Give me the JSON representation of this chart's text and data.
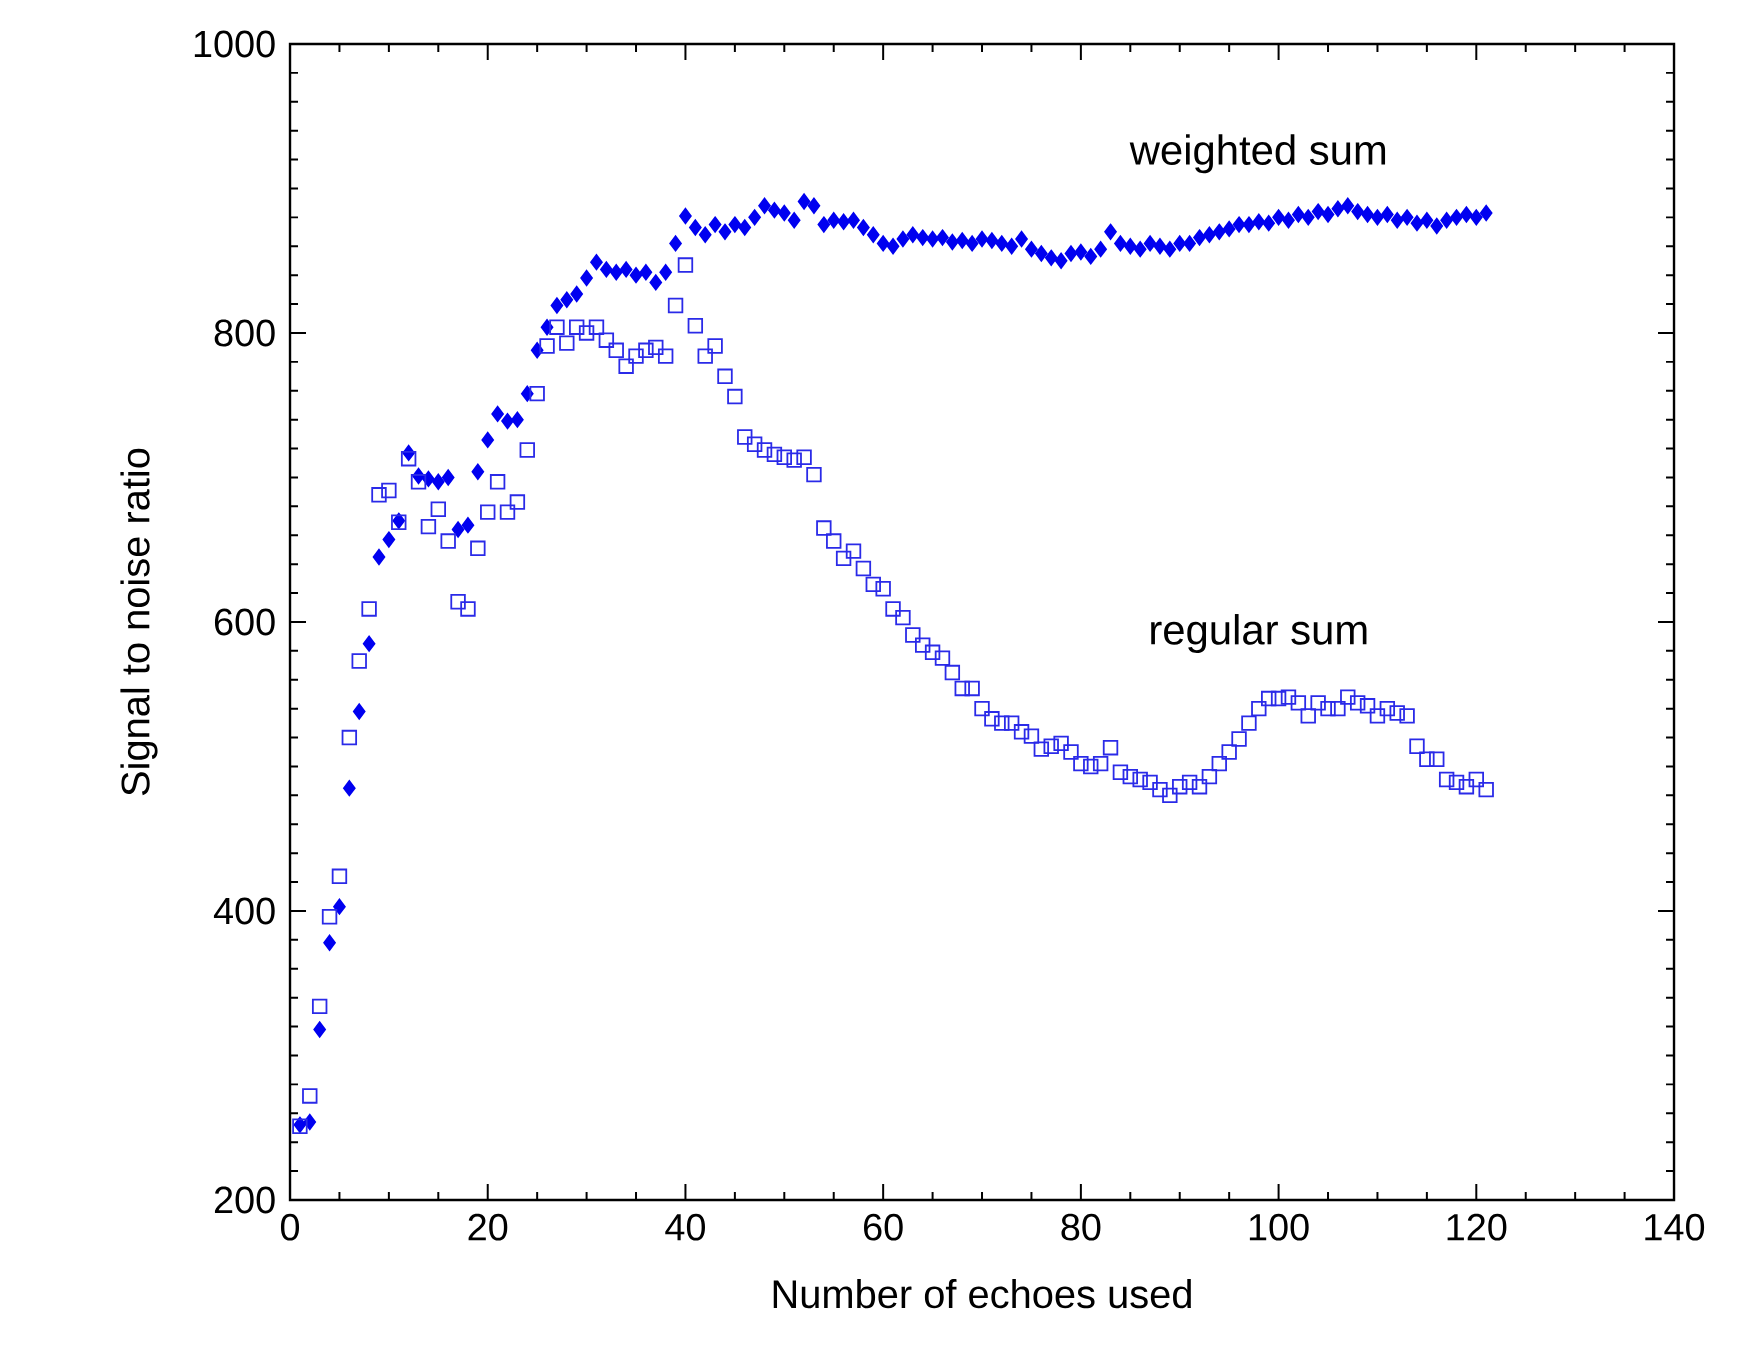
{
  "chart_data": {
    "type": "scatter",
    "xlabel": "Number of echoes used",
    "ylabel": "Signal to noise ratio",
    "x": [
      1,
      2,
      3,
      4,
      5,
      6,
      7,
      8,
      9,
      10,
      11,
      12,
      13,
      14,
      15,
      16,
      17,
      18,
      19,
      20,
      21,
      22,
      23,
      24,
      25,
      26,
      27,
      28,
      29,
      30,
      31,
      32,
      33,
      34,
      35,
      36,
      37,
      38,
      39,
      40,
      41,
      42,
      43,
      44,
      45,
      46,
      47,
      48,
      49,
      50,
      51,
      52,
      53,
      54,
      55,
      56,
      57,
      58,
      59,
      60,
      61,
      62,
      63,
      64,
      65,
      66,
      67,
      68,
      69,
      70,
      71,
      72,
      73,
      74,
      75,
      76,
      77,
      78,
      79,
      80,
      81,
      82,
      83,
      84,
      85,
      86,
      87,
      88,
      89,
      90,
      91,
      92,
      93,
      94,
      95,
      96,
      97,
      98,
      99,
      100,
      101,
      102,
      103,
      104,
      105,
      106,
      107,
      108,
      109,
      110,
      111,
      112,
      113,
      114,
      115,
      116,
      117,
      118,
      119,
      120,
      121
    ],
    "series": [
      {
        "color": "#0000f0",
        "marker": "diamond",
        "values": [
          252,
          254,
          318,
          378,
          403,
          485,
          538,
          585,
          645,
          657,
          670,
          717,
          701,
          699,
          697,
          700,
          664,
          667,
          704,
          726,
          744,
          739,
          740,
          758,
          788,
          804,
          819,
          823,
          827,
          838,
          849,
          844,
          842,
          844,
          840,
          842,
          835,
          842,
          862,
          881,
          873,
          868,
          875,
          870,
          875,
          873,
          880,
          888,
          885,
          883,
          878,
          891,
          888,
          875,
          878,
          877,
          878,
          873,
          868,
          862,
          860,
          865,
          868,
          866,
          865,
          866,
          863,
          864,
          862,
          865,
          864,
          862,
          860,
          865,
          858,
          855,
          852,
          850,
          855,
          856,
          853,
          858,
          870,
          862,
          860,
          858,
          862,
          860,
          858,
          862,
          862,
          866,
          868,
          870,
          872,
          875,
          875,
          877,
          876,
          880,
          878,
          882,
          880,
          884,
          882,
          886,
          888,
          884,
          882,
          880,
          882,
          878,
          880,
          876,
          878,
          874,
          878,
          880,
          882,
          880,
          883
        ]
      },
      {
        "color": "#2a2ae8",
        "marker": "square",
        "values": [
          251,
          272,
          334,
          396,
          424,
          520,
          573,
          609,
          688,
          691,
          669,
          713,
          697,
          666,
          678,
          656,
          614,
          609,
          651,
          676,
          697,
          676,
          683,
          719,
          758,
          791,
          804,
          793,
          804,
          800,
          804,
          795,
          788,
          777,
          784,
          788,
          790,
          784,
          819,
          847,
          805,
          784,
          791,
          770,
          756,
          728,
          723,
          719,
          716,
          714,
          712,
          714,
          702,
          665,
          656,
          644,
          649,
          637,
          626,
          623,
          609,
          603,
          591,
          584,
          579,
          575,
          565,
          554,
          554,
          540,
          533,
          530,
          530,
          524,
          521,
          512,
          514,
          516,
          510,
          502,
          500,
          502,
          513,
          496,
          493,
          491,
          489,
          484,
          480,
          486,
          489,
          486,
          493,
          502,
          510,
          519,
          530,
          540,
          547,
          547,
          548,
          544,
          535,
          544,
          540,
          540,
          548,
          544,
          542,
          535,
          540,
          537,
          535,
          514,
          505,
          505,
          491,
          489,
          486,
          491,
          484
        ]
      }
    ],
    "annotations": [
      "weighted sum",
      "regular sum"
    ],
    "xlim": [
      0,
      140
    ],
    "xticks": [
      0,
      20,
      40,
      60,
      80,
      100,
      120,
      140
    ],
    "ylim": [
      200,
      1000
    ],
    "yticks": [
      200,
      400,
      600,
      800,
      1000
    ]
  }
}
